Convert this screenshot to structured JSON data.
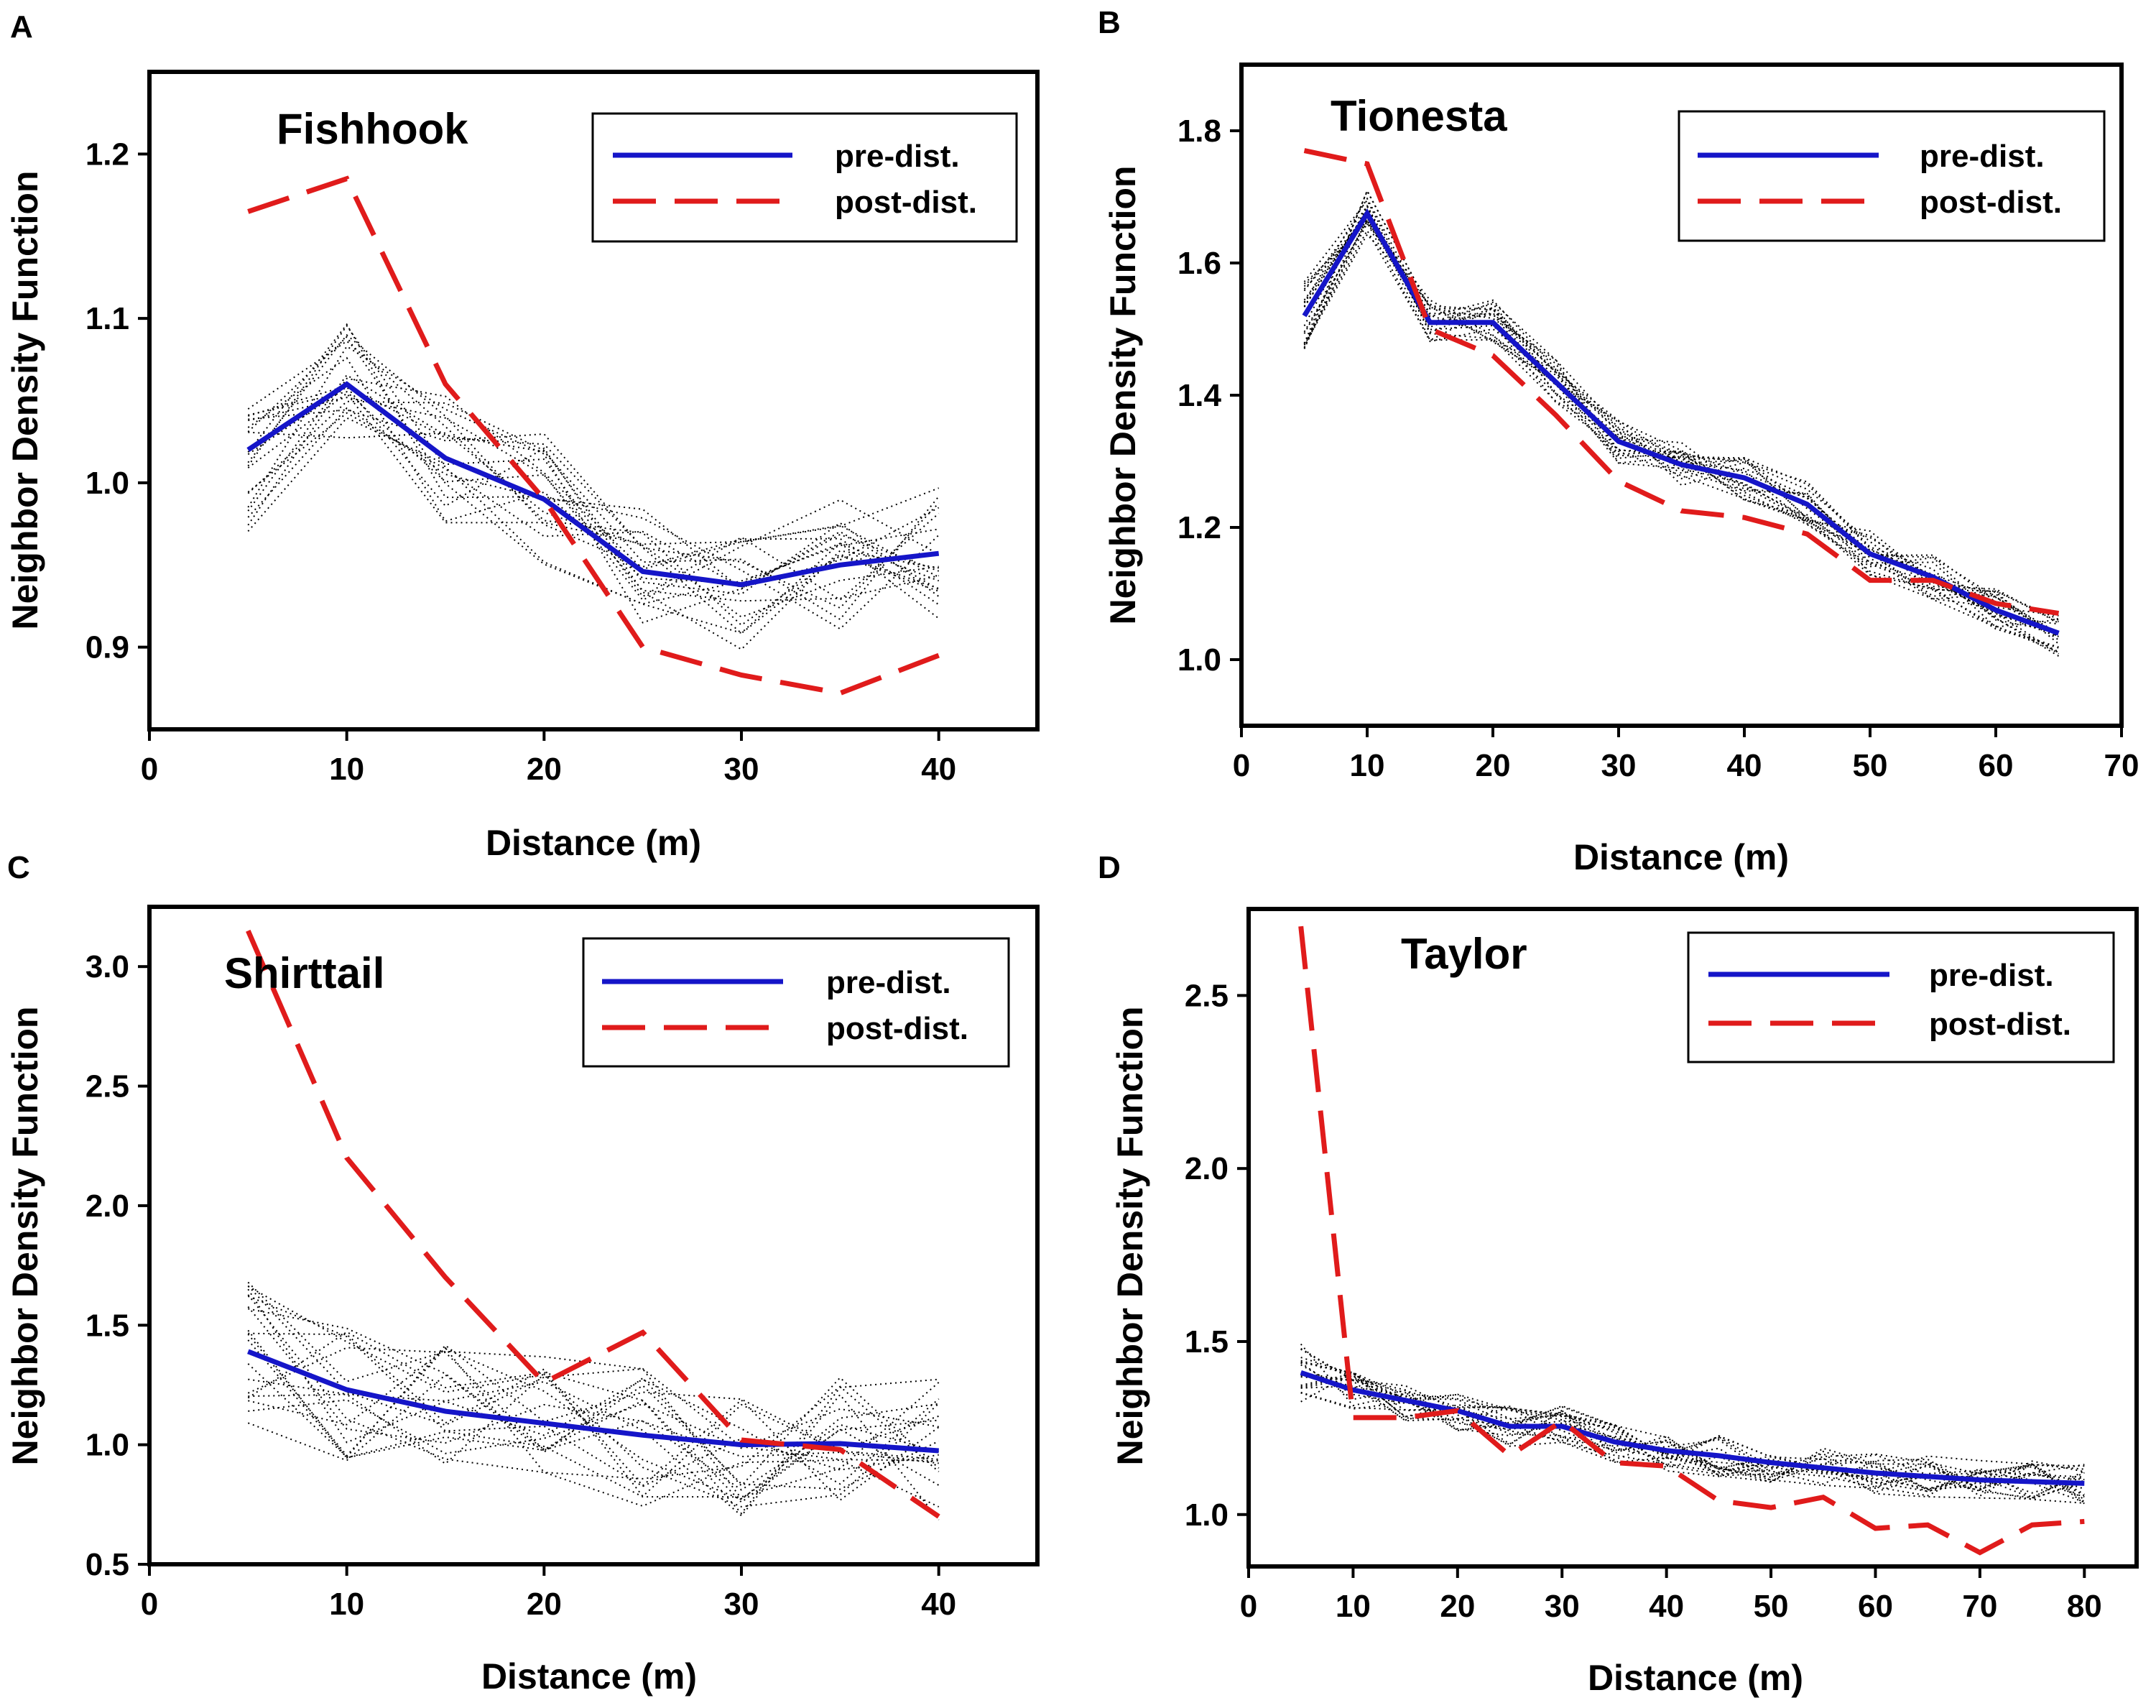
{
  "figure": {
    "colors": {
      "pre": "#1515c8",
      "post": "#e01b1b",
      "sims": "#000000",
      "axes": "#000000",
      "background": "#ffffff"
    },
    "legend": {
      "pre_label": "pre-dist.",
      "post_label": "post-dist."
    },
    "xlabel": "Distance (m)",
    "ylabel": "Neighbor Density Function"
  },
  "chart_data": [
    {
      "type": "line",
      "panel": "A",
      "title": "Fishhook",
      "xlabel": "Distance (m)",
      "ylabel": "Neighbor Density Function",
      "xlim": [
        0,
        45
      ],
      "ylim": [
        0.85,
        1.25
      ],
      "xticks": [
        "0",
        "10",
        "20",
        "30",
        "40"
      ],
      "yticks": [
        "0.9",
        "1.0",
        "1.1",
        "1.2"
      ],
      "x": [
        5,
        10,
        15,
        20,
        25,
        30,
        35,
        40
      ],
      "series": [
        {
          "name": "pre-dist.",
          "values": [
            1.02,
            1.06,
            1.015,
            0.99,
            0.946,
            0.938,
            0.95,
            0.957
          ]
        },
        {
          "name": "post-dist.",
          "values": [
            1.165,
            1.185,
            1.06,
            0.99,
            0.9,
            0.883,
            0.872,
            0.895
          ]
        }
      ],
      "simulation_count": 20,
      "simulation_spread": 0.04
    },
    {
      "type": "line",
      "panel": "B",
      "title": "Tionesta",
      "xlabel": "Distance (m)",
      "ylabel": "Neighbor Density Function",
      "xlim": [
        0,
        70
      ],
      "ylim": [
        0.9,
        1.9
      ],
      "xticks": [
        "0",
        "10",
        "20",
        "30",
        "40",
        "50",
        "60",
        "70"
      ],
      "yticks": [
        "1.0",
        "1.2",
        "1.4",
        "1.6",
        "1.8"
      ],
      "x": [
        5,
        10,
        15,
        20,
        25,
        30,
        35,
        40,
        45,
        50,
        55,
        60,
        65
      ],
      "series": [
        {
          "name": "pre-dist.",
          "values": [
            1.52,
            1.675,
            1.51,
            1.51,
            1.42,
            1.33,
            1.295,
            1.275,
            1.235,
            1.16,
            1.125,
            1.075,
            1.04
          ]
        },
        {
          "name": "post-dist.",
          "values": [
            1.77,
            1.75,
            1.5,
            1.46,
            1.37,
            1.27,
            1.225,
            1.215,
            1.19,
            1.12,
            1.12,
            1.085,
            1.07
          ]
        }
      ],
      "simulation_count": 20,
      "simulation_spread": 0.035
    },
    {
      "type": "line",
      "panel": "C",
      "title": "Shirttail",
      "xlabel": "Distance (m)",
      "ylabel": "Neighbor Density Function",
      "xlim": [
        0,
        45
      ],
      "ylim": [
        0.5,
        3.25
      ],
      "xticks": [
        "0",
        "10",
        "20",
        "30",
        "40"
      ],
      "yticks": [
        "0.5",
        "1.0",
        "1.5",
        "2.0",
        "2.5",
        "3.0"
      ],
      "x": [
        5,
        10,
        15,
        20,
        25,
        30,
        35,
        40
      ],
      "series": [
        {
          "name": "pre-dist.",
          "values": [
            1.39,
            1.23,
            1.14,
            1.09,
            1.04,
            1.0,
            1.005,
            0.975
          ]
        },
        {
          "name": "post-dist.",
          "values": [
            3.15,
            2.2,
            1.7,
            1.26,
            1.47,
            1.02,
            0.98,
            0.7
          ]
        }
      ],
      "simulation_count": 20,
      "simulation_spread": 0.3
    },
    {
      "type": "line",
      "panel": "D",
      "title": "Taylor",
      "xlabel": "Distance (m)",
      "ylabel": "Neighbor Density Function",
      "xlim": [
        0,
        85
      ],
      "ylim": [
        0.85,
        2.75
      ],
      "xticks": [
        "0",
        "10",
        "20",
        "30",
        "40",
        "50",
        "60",
        "70",
        "80"
      ],
      "yticks": [
        "1.0",
        "1.5",
        "2.0",
        "2.5"
      ],
      "x": [
        5,
        10,
        15,
        20,
        25,
        30,
        35,
        40,
        45,
        50,
        55,
        60,
        65,
        70,
        75,
        80
      ],
      "series": [
        {
          "name": "pre-dist.",
          "values": [
            1.41,
            1.36,
            1.33,
            1.3,
            1.255,
            1.255,
            1.21,
            1.185,
            1.17,
            1.15,
            1.135,
            1.12,
            1.11,
            1.1,
            1.095,
            1.09
          ]
        },
        {
          "name": "post-dist.",
          "values": [
            2.7,
            1.28,
            1.28,
            1.3,
            1.17,
            1.27,
            1.15,
            1.14,
            1.04,
            1.02,
            1.05,
            0.96,
            0.97,
            0.89,
            0.97,
            0.98
          ]
        }
      ],
      "simulation_count": 20,
      "simulation_spread": 0.06
    }
  ]
}
